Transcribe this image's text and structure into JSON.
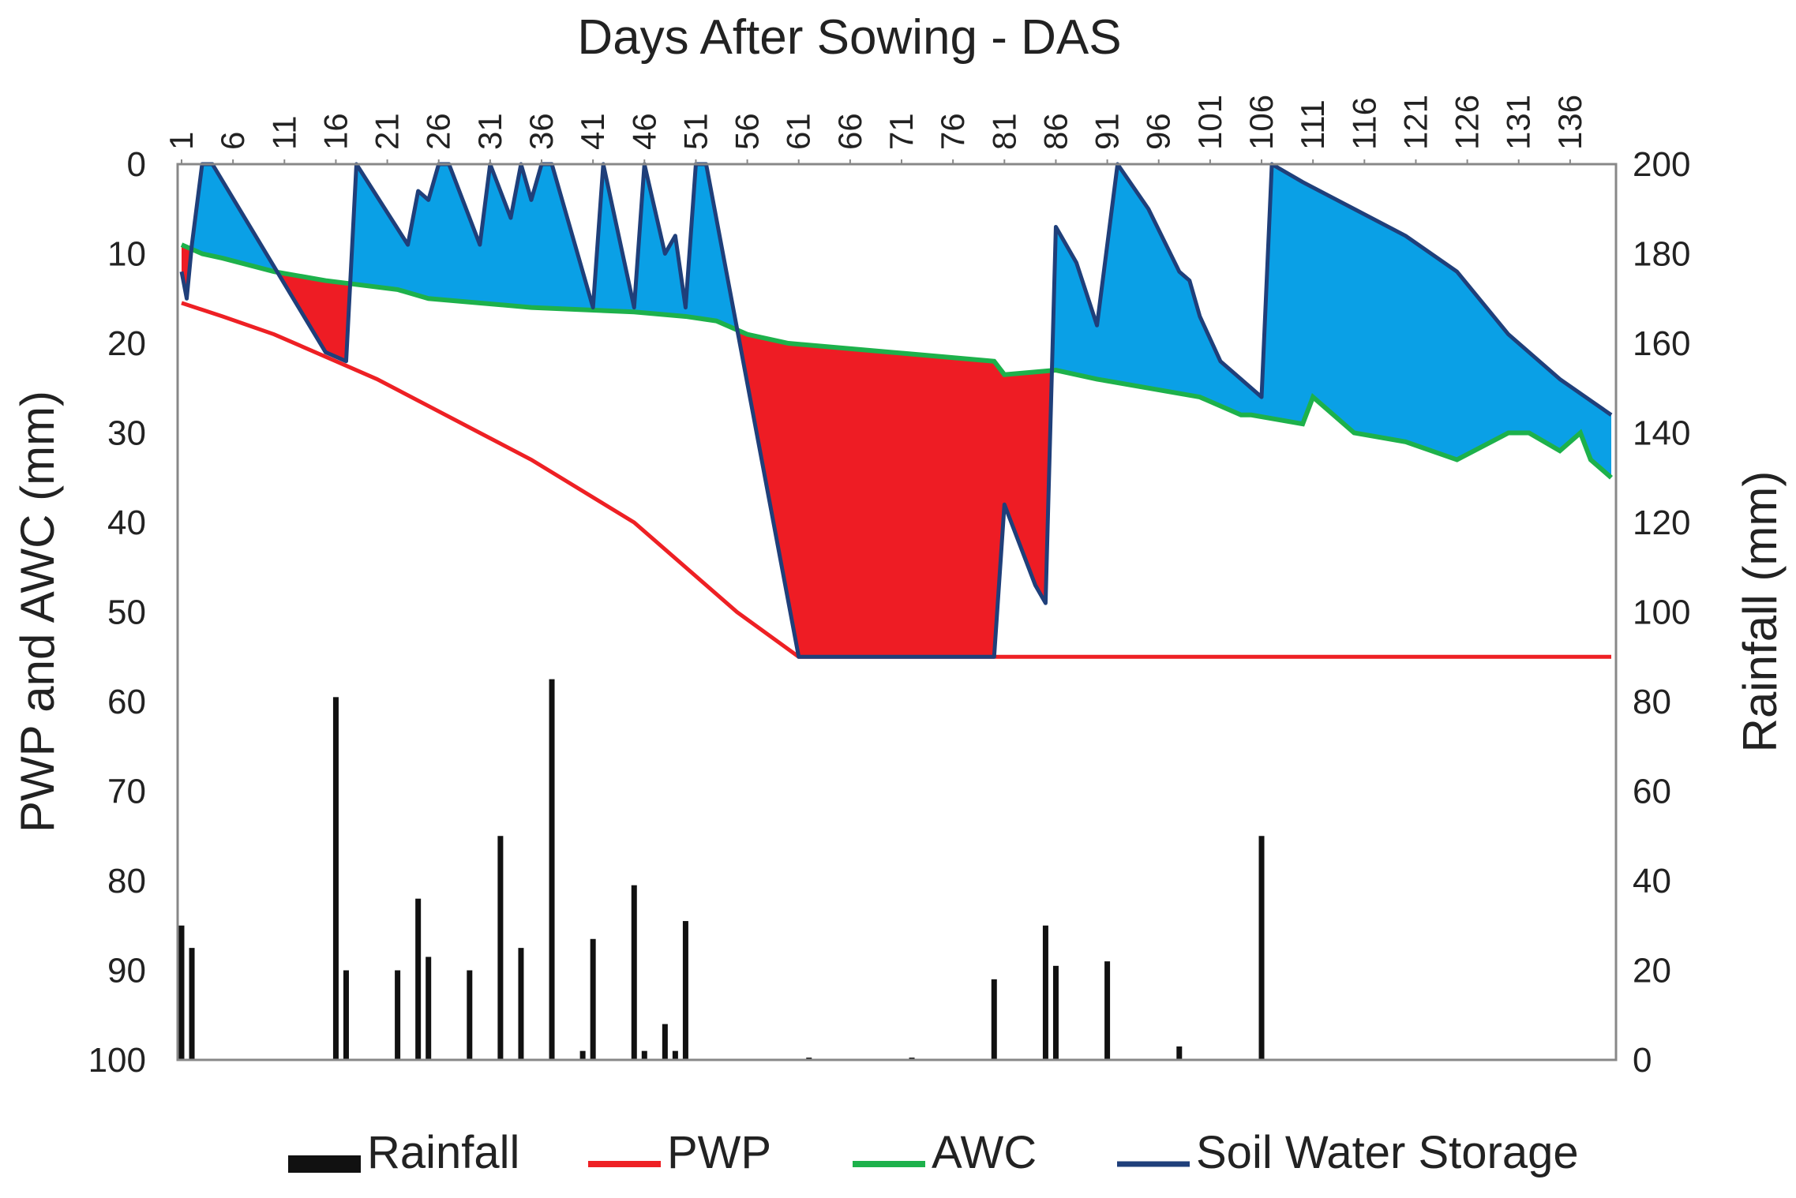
{
  "chart_data": {
    "type": "line",
    "title": "Days After Sowing - DAS",
    "xlabel": "Days After Sowing - DAS",
    "ylabel": "PWP and AWC (mm)",
    "y2label": "Rainfall (mm)",
    "xlim": [
      1,
      140
    ],
    "ylim": [
      0,
      100
    ],
    "y_inverted": true,
    "y2lim": [
      0,
      200
    ],
    "x_ticks": [
      1,
      6,
      11,
      16,
      21,
      26,
      31,
      36,
      41,
      46,
      51,
      56,
      61,
      66,
      71,
      76,
      81,
      86,
      91,
      96,
      101,
      106,
      111,
      116,
      121,
      126,
      131,
      136
    ],
    "y_ticks": [
      0,
      10,
      20,
      30,
      40,
      50,
      60,
      70,
      80,
      90,
      100
    ],
    "y2_ticks": [
      0,
      20,
      40,
      60,
      80,
      100,
      120,
      140,
      160,
      180,
      200
    ],
    "legend_position": "bottom",
    "colors": {
      "rainfall": "#111111",
      "pwp": "#ee2024",
      "awc": "#1db14b",
      "sws": "#1f3f7a",
      "surplus_fill": "#0aa0e6",
      "deficit_fill": "#ee1c24"
    },
    "series": [
      {
        "name": "Rainfall",
        "type": "bar",
        "axis": "right",
        "x": [
          1,
          2,
          16,
          17,
          22,
          24,
          25,
          29,
          32,
          34,
          37,
          40,
          41,
          45,
          46,
          48,
          49,
          50,
          62,
          72,
          80,
          85,
          86,
          91,
          98,
          106
        ],
        "values": [
          30,
          25,
          81,
          20,
          20,
          36,
          23,
          20,
          50,
          25,
          85,
          2,
          27,
          39,
          2,
          8,
          2,
          31,
          0.5,
          0.5,
          18,
          30,
          21,
          22,
          3,
          50
        ]
      },
      {
        "name": "PWP",
        "type": "line",
        "axis": "left",
        "x": [
          1,
          5,
          10,
          16,
          20,
          25,
          30,
          35,
          40,
          45,
          50,
          55,
          61,
          80,
          100,
          120,
          140
        ],
        "values": [
          15.5,
          17,
          19,
          22,
          24,
          27,
          30,
          33,
          36.5,
          40,
          45,
          50,
          55,
          55,
          55,
          55,
          55
        ]
      },
      {
        "name": "AWC",
        "type": "line",
        "axis": "left",
        "x": [
          1,
          3,
          5,
          10,
          15,
          22,
          25,
          35,
          45,
          50,
          53,
          56,
          60,
          70,
          80,
          81,
          86,
          90,
          100,
          104,
          105,
          110,
          111,
          115,
          120,
          125,
          130,
          132,
          135,
          137,
          138,
          140
        ],
        "values": [
          9,
          10,
          10.5,
          12,
          13,
          14,
          15,
          16,
          16.5,
          17,
          17.5,
          19,
          20,
          21,
          22,
          23.5,
          23,
          24,
          26,
          28,
          28,
          29,
          26,
          30,
          31,
          33,
          30,
          30,
          32,
          30,
          33,
          35
        ]
      },
      {
        "name": "Soil Water Storage",
        "type": "line",
        "axis": "left",
        "x": [
          1,
          1.5,
          2,
          3,
          4,
          15,
          17,
          18,
          23,
          24,
          25,
          26,
          27,
          30,
          31,
          33,
          34,
          35,
          36,
          37,
          40,
          41,
          42,
          45,
          46,
          48,
          49,
          50,
          51,
          52,
          61,
          80,
          81,
          84,
          85,
          86,
          88,
          90,
          92,
          95,
          98,
          99,
          100,
          102,
          104,
          106,
          107,
          110,
          115,
          120,
          125,
          130,
          135,
          140
        ],
        "values": [
          12,
          15,
          9,
          0,
          0,
          21,
          22,
          0,
          9,
          3,
          4,
          0,
          0,
          9,
          0,
          6,
          0,
          4,
          0,
          0,
          12,
          16,
          0,
          16,
          0,
          10,
          8,
          16,
          0,
          0,
          55,
          55,
          38,
          47,
          49,
          7,
          11,
          18,
          0,
          5,
          12,
          13,
          17,
          22,
          24,
          26,
          0,
          2,
          5,
          8,
          12,
          19,
          24,
          28
        ]
      }
    ]
  }
}
